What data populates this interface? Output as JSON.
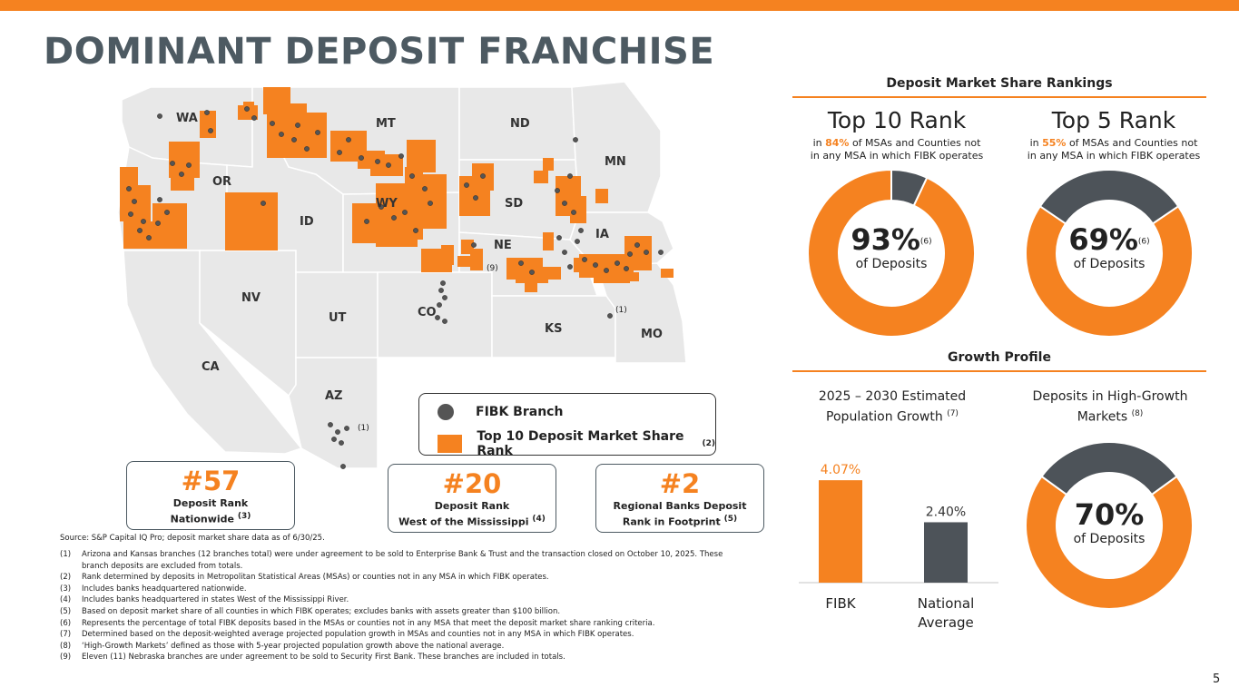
{
  "title": "DOMINANT DEPOSIT FRANCHISE",
  "map": {
    "state_labels": [
      "WA",
      "OR",
      "CA",
      "NV",
      "ID",
      "UT",
      "AZ",
      "MT",
      "WY",
      "CO",
      "ND",
      "SD",
      "NE",
      "KS",
      "MN",
      "IA",
      "MO"
    ],
    "note_labels": [
      "(1)",
      "(9)",
      "(1)"
    ]
  },
  "legend": {
    "branch_label": "FIBK Branch",
    "rank_label": "Top 10 Deposit Market Share Rank",
    "rank_sup": "(2)"
  },
  "stats": [
    {
      "big": "#57",
      "line1": "Deposit Rank",
      "line2": "Nationwide",
      "sup": "(3)"
    },
    {
      "big": "#20",
      "line1": "Deposit Rank",
      "line2": "West of the Mississippi",
      "sup": "(4)"
    },
    {
      "big": "#2",
      "line1": "Regional Banks Deposit",
      "line2": "Rank in Footprint",
      "sup": "(5)"
    }
  ],
  "source": "Source: S&P Capital IQ Pro; deposit market share data as of 6/30/25.",
  "footnotes": [
    {
      "num": "(1)",
      "text": "Arizona and Kansas branches (12 branches total) were under agreement to be sold to Enterprise Bank & Trust and the transaction closed on October 10, 2025. These branch deposits are excluded from totals."
    },
    {
      "num": "(2)",
      "text": "Rank determined by deposits in Metropolitan Statistical Areas (MSAs) or counties not in any MSA in which FIBK operates."
    },
    {
      "num": "(3)",
      "text": "Includes banks headquartered nationwide."
    },
    {
      "num": "(4)",
      "text": "Includes banks headquartered in states West of the Mississippi River."
    },
    {
      "num": "(5)",
      "text": "Based on deposit market share of all counties in which FIBK operates; excludes banks with assets greater than $100 billion."
    },
    {
      "num": "(6)",
      "text": "Represents the percentage of total FIBK deposits based in the MSAs or counties not in any MSA that meet the deposit market share ranking criteria."
    },
    {
      "num": "(7)",
      "text": "Determined based on the deposit-weighted average projected population growth in MSAs and counties not in any MSA in which FIBK operates."
    },
    {
      "num": "(8)",
      "text": "‘High-Growth Markets’ defined as those with 5-year projected population growth above the national average."
    },
    {
      "num": "(9)",
      "text": "Eleven (11) Nebraska branches are under agreement to be sold to Security First Bank. These branches are included in totals."
    }
  ],
  "rankings": {
    "header": "Deposit Market Share Rankings",
    "top10": {
      "title": "Top 10 Rank",
      "sub_pre": "in ",
      "sub_pct": "84%",
      "sub_post": " of MSAs and Counties not",
      "sub_line2": "in any MSA in which FIBK operates",
      "center_value": "93%",
      "center_sup": "(6)",
      "center_label": "of Deposits",
      "share": 0.93
    },
    "top5": {
      "title": "Top 5 Rank",
      "sub_pre": "in ",
      "sub_pct": "55%",
      "sub_post": " of MSAs and Counties not",
      "sub_line2": "in any MSA in which FIBK operates",
      "center_value": "69%",
      "center_sup": "(6)",
      "center_label": "of Deposits",
      "share": 0.69
    }
  },
  "growth": {
    "header": "Growth Profile",
    "pop_head_line1": "2025 – 2030 Estimated",
    "pop_head_line2": "Population Growth",
    "pop_head_sup": "(7)",
    "hg_head_line1": "Deposits in High-Growth",
    "hg_head_line2": "Markets",
    "hg_head_sup": "(8)",
    "hg_value": "70%",
    "hg_label": "of Deposits",
    "hg_share": 0.7
  },
  "chart_data": {
    "type": "bar",
    "categories": [
      "FIBK",
      "National Average"
    ],
    "values": [
      4.07,
      2.4
    ],
    "value_labels": [
      "4.07%",
      "2.40%"
    ],
    "title": "2025 – 2030 Estimated Population Growth",
    "xlabel": "",
    "ylabel": "",
    "ylim": [
      0,
      4.4
    ],
    "colors": [
      "#F58220",
      "#4D5359"
    ]
  },
  "colors": {
    "accent": "#F58220",
    "dark": "#4D5359",
    "title": "#4D5A62"
  },
  "page_number": "5"
}
